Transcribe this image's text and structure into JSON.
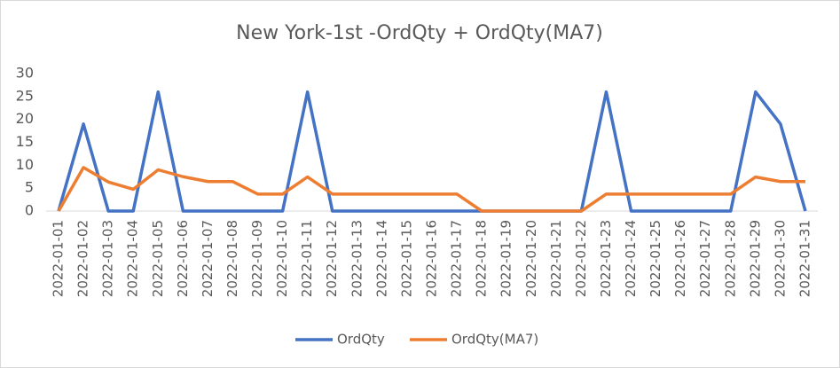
{
  "chart_data": {
    "type": "line",
    "title": "New York-1st -OrdQty + OrdQty(MA7)",
    "x": [
      "2022-01-01",
      "2022-01-02",
      "2022-01-03",
      "2022-01-04",
      "2022-01-05",
      "2022-01-06",
      "2022-01-07",
      "2022-01-08",
      "2022-01-09",
      "2022-01-10",
      "2022-01-11",
      "2022-01-12",
      "2022-01-13",
      "2022-01-14",
      "2022-01-15",
      "2022-01-16",
      "2022-01-17",
      "2022-01-18",
      "2022-01-19",
      "2022-01-20",
      "2022-01-21",
      "2022-01-22",
      "2022-01-23",
      "2022-01-24",
      "2022-01-25",
      "2022-01-26",
      "2022-01-27",
      "2022-01-28",
      "2022-01-29",
      "2022-01-30",
      "2022-01-31"
    ],
    "series": [
      {
        "name": "OrdQty",
        "color": "#4472c4",
        "values": [
          0,
          19,
          0,
          0,
          26,
          0,
          0,
          0,
          0,
          0,
          26,
          0,
          0,
          0,
          0,
          0,
          0,
          0,
          0,
          0,
          0,
          0,
          26,
          0,
          0,
          0,
          0,
          0,
          26,
          19,
          0
        ]
      },
      {
        "name": "OrdQty(MA7)",
        "color": "#ed7d31",
        "values": [
          0,
          9.5,
          6.33,
          4.75,
          9,
          7.5,
          6.43,
          6.43,
          3.71,
          3.71,
          7.43,
          3.71,
          3.71,
          3.71,
          3.71,
          3.71,
          3.71,
          0,
          0,
          0,
          0,
          0,
          3.71,
          3.71,
          3.71,
          3.71,
          3.71,
          3.71,
          7.43,
          6.43,
          6.43
        ]
      }
    ],
    "ylim": [
      0,
      30
    ],
    "yticks": [
      0,
      5,
      10,
      15,
      20,
      25,
      30
    ],
    "grid": false,
    "legend": "bottom"
  }
}
